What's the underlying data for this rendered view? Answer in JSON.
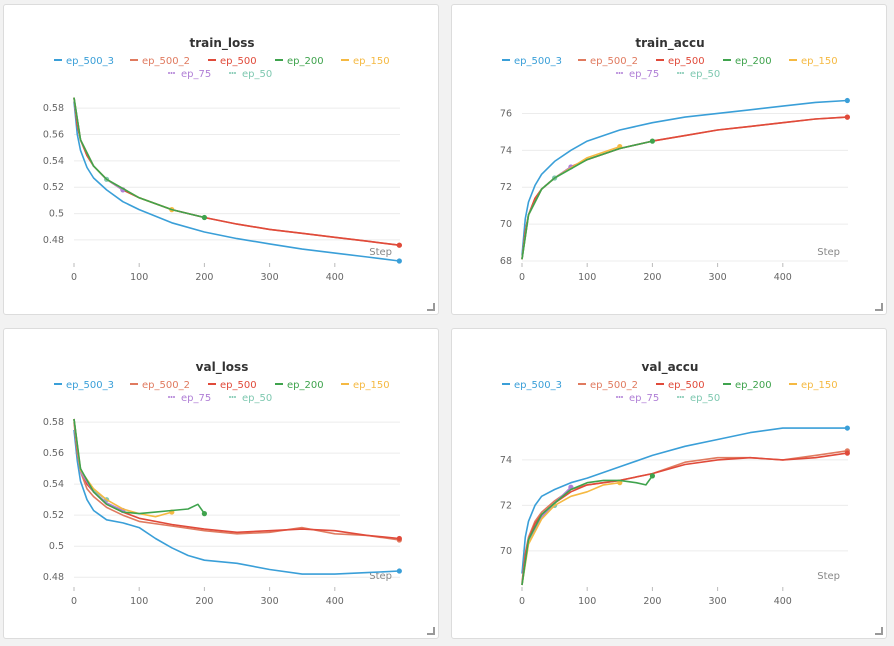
{
  "legend": [
    {
      "name": "ep_500_3",
      "color": "#3a9fd8",
      "style": "line"
    },
    {
      "name": "ep_500_2",
      "color": "#e07a5f",
      "style": "line"
    },
    {
      "name": "ep_500",
      "color": "#e04a3a",
      "style": "line"
    },
    {
      "name": "ep_200",
      "color": "#3fa34d",
      "style": "line"
    },
    {
      "name": "ep_150",
      "color": "#f5b942",
      "style": "line"
    },
    {
      "name": "ep_75",
      "color": "#b07fd6",
      "style": "dots"
    },
    {
      "name": "ep_50",
      "color": "#7ec8b0",
      "style": "dots"
    }
  ],
  "x_ticks": [
    0,
    100,
    200,
    300,
    400
  ],
  "xlabel": "Step",
  "chart_data": [
    {
      "type": "line",
      "title": "train_loss",
      "xlabel": "Step",
      "xlim": [
        0,
        500
      ],
      "ylim": [
        0.464,
        0.59
      ],
      "y_ticks": [
        "0.48",
        "0.5",
        "0.52",
        "0.54",
        "0.56",
        "0.58"
      ],
      "y_tick_values": [
        0.48,
        0.5,
        0.52,
        0.54,
        0.56,
        0.58
      ],
      "series": [
        {
          "name": "ep_500_3",
          "x": [
            0,
            5,
            10,
            20,
            30,
            50,
            75,
            100,
            150,
            200,
            250,
            300,
            350,
            400,
            450,
            499
          ],
          "y": [
            0.585,
            0.56,
            0.548,
            0.535,
            0.527,
            0.518,
            0.509,
            0.503,
            0.493,
            0.486,
            0.481,
            0.477,
            0.473,
            0.47,
            0.467,
            0.464
          ]
        },
        {
          "name": "ep_500_2",
          "x": [
            0,
            5,
            10,
            20,
            30,
            50,
            75,
            100,
            150,
            200,
            250,
            300,
            350,
            400,
            450,
            499
          ],
          "y": [
            0.588,
            0.567,
            0.556,
            0.544,
            0.536,
            0.526,
            0.518,
            0.512,
            0.503,
            0.497,
            0.492,
            0.488,
            0.485,
            0.482,
            0.479,
            0.476
          ]
        },
        {
          "name": "ep_500",
          "x": [
            0,
            5,
            10,
            20,
            30,
            50,
            75,
            100,
            150,
            200,
            250,
            300,
            350,
            400,
            450,
            499
          ],
          "y": [
            0.588,
            0.567,
            0.556,
            0.544,
            0.536,
            0.526,
            0.518,
            0.512,
            0.503,
            0.497,
            0.492,
            0.488,
            0.485,
            0.482,
            0.479,
            0.476
          ]
        },
        {
          "name": "ep_200",
          "x": [
            0,
            10,
            30,
            50,
            100,
            150,
            200
          ],
          "y": [
            0.588,
            0.556,
            0.536,
            0.526,
            0.512,
            0.503,
            0.497
          ]
        },
        {
          "name": "ep_150",
          "x": [
            0,
            10,
            30,
            50,
            100,
            150
          ],
          "y": [
            0.588,
            0.556,
            0.536,
            0.526,
            0.512,
            0.503
          ]
        },
        {
          "name": "ep_75",
          "x": [
            0,
            10,
            30,
            50,
            75
          ],
          "y": [
            0.588,
            0.556,
            0.536,
            0.526,
            0.518
          ]
        },
        {
          "name": "ep_50",
          "x": [
            0,
            10,
            30,
            50
          ],
          "y": [
            0.588,
            0.556,
            0.536,
            0.526
          ]
        }
      ]
    },
    {
      "type": "line",
      "title": "train_accu",
      "xlabel": "Step",
      "xlim": [
        0,
        500
      ],
      "ylim": [
        68,
        77
      ],
      "y_ticks": [
        "68",
        "70",
        "72",
        "74",
        "76"
      ],
      "y_tick_values": [
        68,
        70,
        72,
        74,
        76
      ],
      "series": [
        {
          "name": "ep_500_3",
          "x": [
            0,
            5,
            10,
            20,
            30,
            50,
            75,
            100,
            150,
            200,
            250,
            300,
            350,
            400,
            450,
            499
          ],
          "y": [
            68.3,
            70.3,
            71.2,
            72.1,
            72.7,
            73.4,
            74.0,
            74.5,
            75.1,
            75.5,
            75.8,
            76.0,
            76.2,
            76.4,
            76.6,
            76.7
          ]
        },
        {
          "name": "ep_500_2",
          "x": [
            0,
            5,
            10,
            20,
            30,
            50,
            75,
            100,
            150,
            200,
            250,
            300,
            350,
            400,
            450,
            499
          ],
          "y": [
            68.1,
            69.6,
            70.5,
            71.4,
            71.9,
            72.5,
            73.1,
            73.5,
            74.1,
            74.5,
            74.8,
            75.1,
            75.3,
            75.5,
            75.7,
            75.8
          ]
        },
        {
          "name": "ep_500",
          "x": [
            0,
            5,
            10,
            20,
            30,
            50,
            75,
            100,
            150,
            200,
            250,
            300,
            350,
            400,
            450,
            499
          ],
          "y": [
            68.1,
            69.6,
            70.5,
            71.4,
            71.9,
            72.5,
            73.1,
            73.5,
            74.1,
            74.5,
            74.8,
            75.1,
            75.3,
            75.5,
            75.7,
            75.8
          ]
        },
        {
          "name": "ep_200",
          "x": [
            0,
            10,
            30,
            50,
            100,
            150,
            200
          ],
          "y": [
            68.1,
            70.5,
            71.9,
            72.5,
            73.5,
            74.1,
            74.5
          ]
        },
        {
          "name": "ep_150",
          "x": [
            0,
            10,
            30,
            50,
            100,
            150
          ],
          "y": [
            68.1,
            70.5,
            71.9,
            72.5,
            73.6,
            74.2
          ]
        },
        {
          "name": "ep_75",
          "x": [
            0,
            10,
            30,
            50,
            75
          ],
          "y": [
            68.1,
            70.5,
            71.9,
            72.5,
            73.1
          ]
        },
        {
          "name": "ep_50",
          "x": [
            0,
            10,
            30,
            50
          ],
          "y": [
            68.1,
            70.5,
            71.9,
            72.5
          ]
        }
      ]
    },
    {
      "type": "line",
      "title": "val_loss",
      "xlabel": "Step",
      "xlim": [
        0,
        500
      ],
      "ylim": [
        0.475,
        0.582
      ],
      "y_ticks": [
        "0.48",
        "0.5",
        "0.52",
        "0.54",
        "0.56",
        "0.58"
      ],
      "y_tick_values": [
        0.48,
        0.5,
        0.52,
        0.54,
        0.56,
        0.58
      ],
      "series": [
        {
          "name": "ep_500_3",
          "x": [
            0,
            5,
            10,
            20,
            30,
            40,
            50,
            75,
            100,
            125,
            150,
            175,
            200,
            250,
            300,
            350,
            400,
            450,
            499
          ],
          "y": [
            0.575,
            0.555,
            0.542,
            0.53,
            0.523,
            0.52,
            0.517,
            0.515,
            0.512,
            0.505,
            0.499,
            0.494,
            0.491,
            0.489,
            0.485,
            0.482,
            0.482,
            0.483,
            0.484
          ]
        },
        {
          "name": "ep_500_2",
          "x": [
            0,
            5,
            10,
            20,
            30,
            50,
            75,
            100,
            150,
            200,
            250,
            300,
            350,
            400,
            450,
            499
          ],
          "y": [
            0.58,
            0.56,
            0.548,
            0.537,
            0.532,
            0.525,
            0.52,
            0.516,
            0.513,
            0.51,
            0.508,
            0.509,
            0.512,
            0.508,
            0.507,
            0.504
          ]
        },
        {
          "name": "ep_500",
          "x": [
            0,
            5,
            10,
            20,
            30,
            50,
            75,
            100,
            150,
            200,
            250,
            300,
            350,
            400,
            450,
            499
          ],
          "y": [
            0.582,
            0.562,
            0.55,
            0.54,
            0.535,
            0.527,
            0.522,
            0.518,
            0.514,
            0.511,
            0.509,
            0.51,
            0.511,
            0.51,
            0.507,
            0.505
          ]
        },
        {
          "name": "ep_200",
          "x": [
            0,
            10,
            30,
            50,
            75,
            100,
            125,
            150,
            175,
            190,
            200
          ],
          "y": [
            0.582,
            0.55,
            0.535,
            0.527,
            0.522,
            0.521,
            0.522,
            0.523,
            0.524,
            0.527,
            0.521
          ]
        },
        {
          "name": "ep_150",
          "x": [
            0,
            10,
            30,
            50,
            75,
            100,
            125,
            150
          ],
          "y": [
            0.582,
            0.549,
            0.537,
            0.53,
            0.524,
            0.521,
            0.519,
            0.522
          ]
        },
        {
          "name": "ep_75",
          "x": [
            0,
            10,
            30,
            50,
            75
          ],
          "y": [
            0.582,
            0.548,
            0.535,
            0.528,
            0.523
          ]
        },
        {
          "name": "ep_50",
          "x": [
            0,
            10,
            30,
            50
          ],
          "y": [
            0.582,
            0.548,
            0.536,
            0.53
          ]
        }
      ]
    },
    {
      "type": "line",
      "title": "val_accu",
      "xlabel": "Step",
      "xlim": [
        0,
        500
      ],
      "ylim": [
        68.5,
        75.8
      ],
      "y_ticks": [
        "70",
        "72",
        "74"
      ],
      "y_tick_values": [
        70,
        72,
        74
      ],
      "series": [
        {
          "name": "ep_500_3",
          "x": [
            0,
            5,
            10,
            20,
            30,
            50,
            75,
            100,
            150,
            200,
            250,
            300,
            350,
            400,
            450,
            499
          ],
          "y": [
            69.0,
            70.6,
            71.3,
            72.0,
            72.4,
            72.7,
            73.0,
            73.2,
            73.7,
            74.2,
            74.6,
            74.9,
            75.2,
            75.4,
            75.4,
            75.4
          ]
        },
        {
          "name": "ep_500_2",
          "x": [
            0,
            5,
            10,
            20,
            30,
            50,
            75,
            100,
            150,
            200,
            250,
            300,
            350,
            400,
            450,
            499
          ],
          "y": [
            68.6,
            69.9,
            70.6,
            71.3,
            71.7,
            72.2,
            72.7,
            72.9,
            73.1,
            73.4,
            73.9,
            74.1,
            74.1,
            74.0,
            74.2,
            74.4
          ]
        },
        {
          "name": "ep_500",
          "x": [
            0,
            5,
            10,
            20,
            30,
            50,
            75,
            100,
            150,
            200,
            250,
            300,
            350,
            400,
            450,
            499
          ],
          "y": [
            68.5,
            69.8,
            70.5,
            71.2,
            71.6,
            72.1,
            72.6,
            72.9,
            73.1,
            73.4,
            73.8,
            74.0,
            74.1,
            74.0,
            74.1,
            74.3
          ]
        },
        {
          "name": "ep_200",
          "x": [
            0,
            10,
            30,
            50,
            75,
            100,
            125,
            150,
            175,
            190,
            200
          ],
          "y": [
            68.5,
            70.5,
            71.6,
            72.1,
            72.7,
            73.0,
            73.1,
            73.1,
            73.0,
            72.9,
            73.3
          ]
        },
        {
          "name": "ep_150",
          "x": [
            0,
            10,
            30,
            50,
            75,
            100,
            125,
            150
          ],
          "y": [
            68.5,
            70.3,
            71.4,
            72.0,
            72.4,
            72.6,
            72.9,
            73.0
          ]
        },
        {
          "name": "ep_75",
          "x": [
            0,
            10,
            30,
            50,
            75
          ],
          "y": [
            68.5,
            70.5,
            71.5,
            72.1,
            72.8
          ]
        },
        {
          "name": "ep_50",
          "x": [
            0,
            10,
            30,
            50
          ],
          "y": [
            68.5,
            70.4,
            71.5,
            72.0
          ]
        }
      ]
    }
  ]
}
